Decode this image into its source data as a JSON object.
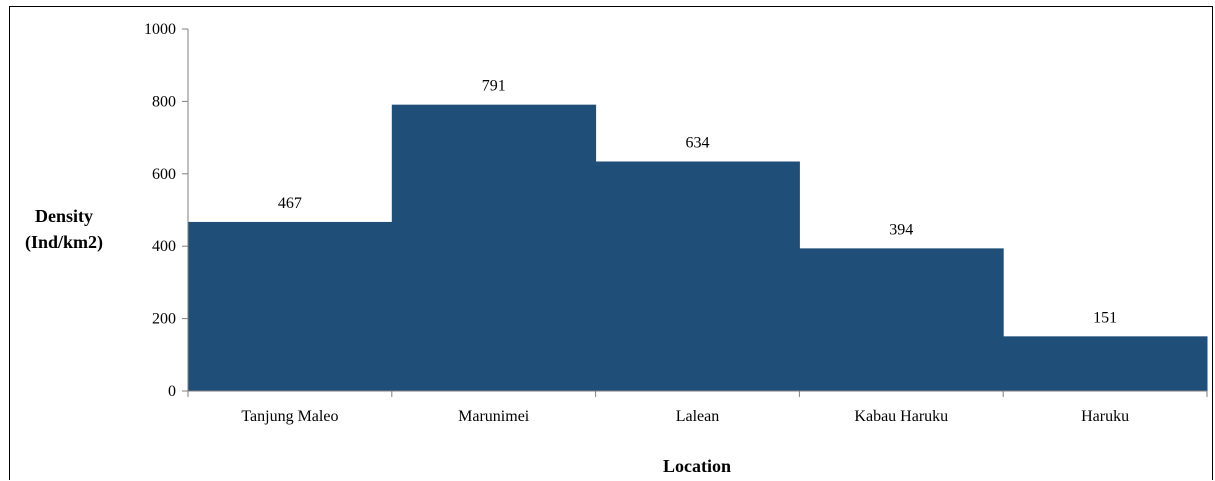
{
  "chart_data": {
    "type": "bar",
    "categories": [
      "Tanjung Maleo",
      "Marunimei",
      "Lalean",
      "Kabau Haruku",
      "Haruku"
    ],
    "values": [
      467,
      791,
      634,
      394,
      151
    ],
    "data_labels": [
      "467",
      "791",
      "634",
      "394",
      "151"
    ],
    "title": "",
    "xlabel": "Location",
    "ylabel": [
      "Density",
      "(Ind/km2)"
    ],
    "ylim": [
      0,
      1000
    ],
    "yticks": [
      0,
      200,
      400,
      600,
      800,
      1000
    ],
    "ytick_labels": [
      "0",
      "200",
      "400",
      "600",
      "800",
      "1000"
    ],
    "grid": false,
    "legend": "none",
    "bar_color": "#1f4e79"
  }
}
